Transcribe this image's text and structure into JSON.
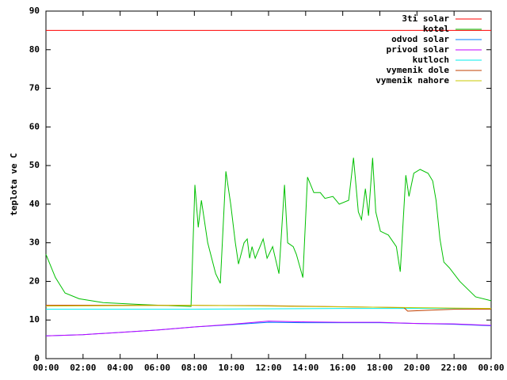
{
  "chart_data": {
    "type": "line",
    "y_label": "teplota ve C",
    "xlim": [
      0,
      24
    ],
    "xticks": [
      {
        "value": 0,
        "label": "00:00"
      },
      {
        "value": 2,
        "label": "02:00"
      },
      {
        "value": 4,
        "label": "04:00"
      },
      {
        "value": 6,
        "label": "06:00"
      },
      {
        "value": 8,
        "label": "08:00"
      },
      {
        "value": 10,
        "label": "10:00"
      },
      {
        "value": 12,
        "label": "12:00"
      },
      {
        "value": 14,
        "label": "14:00"
      },
      {
        "value": 16,
        "label": "16:00"
      },
      {
        "value": 18,
        "label": "18:00"
      },
      {
        "value": 20,
        "label": "20:00"
      },
      {
        "value": 22,
        "label": "22:00"
      },
      {
        "value": 24,
        "label": "00:00"
      }
    ],
    "ylim": [
      0,
      90
    ],
    "yticks": [
      0,
      10,
      20,
      30,
      40,
      50,
      60,
      70,
      80,
      90
    ],
    "legend": "top-right",
    "series": [
      {
        "name": "3ti solar",
        "color": "#ff0000",
        "x": [
          0,
          24
        ],
        "values": [
          85,
          85
        ]
      },
      {
        "name": "kotel",
        "color": "#00c000",
        "x": [
          0,
          0.51,
          1.03,
          1.79,
          3.08,
          5.21,
          7.82,
          8.03,
          8.21,
          8.38,
          8.72,
          9.15,
          9.4,
          9.7,
          9.96,
          10.21,
          10.38,
          10.68,
          10.85,
          10.98,
          11.11,
          11.28,
          11.71,
          11.92,
          12.22,
          12.56,
          12.86,
          13.03,
          13.33,
          13.5,
          13.85,
          14.1,
          14.44,
          14.79,
          15.04,
          15.47,
          15.81,
          16.32,
          16.58,
          16.84,
          17.01,
          17.22,
          17.39,
          17.61,
          17.78,
          18.03,
          18.46,
          18.89,
          19.1,
          19.4,
          19.57,
          19.83,
          20.17,
          20.6,
          20.85,
          21.03,
          21.24,
          21.45,
          21.75,
          22.31,
          23.16,
          24
        ],
        "values": [
          27,
          21,
          17,
          15.5,
          14.5,
          14,
          13.5,
          45,
          34,
          41,
          30,
          22,
          19.5,
          48.5,
          40,
          30,
          24.5,
          30,
          31,
          26,
          29,
          26,
          31,
          26,
          29,
          22,
          45,
          30,
          29,
          27,
          21,
          47,
          43,
          43,
          41.5,
          42,
          40,
          41,
          52,
          38,
          36,
          44,
          37,
          52,
          38,
          33,
          32,
          29,
          22.5,
          47.5,
          42,
          48,
          49,
          48,
          46,
          41,
          31,
          25,
          23.5,
          20,
          16,
          15
        ]
      },
      {
        "name": "odvod solar",
        "color": "#0080ff",
        "x": [
          0,
          2,
          4,
          6,
          8,
          10,
          12,
          14,
          16,
          18,
          20,
          22,
          24
        ],
        "values": [
          5.9,
          6.2,
          6.8,
          7.4,
          8.2,
          8.8,
          9.4,
          9.3,
          9.3,
          9.3,
          9.1,
          8.9,
          8.5
        ]
      },
      {
        "name": "privod solar",
        "color": "#c000ff",
        "x": [
          0,
          2,
          4,
          6,
          8,
          10,
          12,
          14,
          16,
          18,
          20,
          22,
          24
        ],
        "values": [
          5.9,
          6.2,
          6.8,
          7.4,
          8.2,
          8.9,
          9.7,
          9.5,
          9.4,
          9.4,
          9.1,
          9.0,
          8.6
        ]
      },
      {
        "name": "kutloch",
        "color": "#00eeee",
        "x": [
          0,
          8,
          16,
          24
        ],
        "values": [
          12.8,
          12.8,
          13,
          13
        ]
      },
      {
        "name": "vymenik dole",
        "color": "#c04000",
        "x": [
          0,
          8,
          12,
          18,
          19.3,
          19.5,
          20.5,
          22,
          24
        ],
        "values": [
          13.8,
          13.8,
          13.7,
          13.3,
          13.2,
          12.3,
          12.5,
          12.8,
          12.8
        ]
      },
      {
        "name": "vymenik nahore",
        "color": "#c8c800",
        "x": [
          0,
          8,
          12,
          16,
          20,
          24
        ],
        "values": [
          13.6,
          13.8,
          13.6,
          13.4,
          13.2,
          13
        ]
      }
    ]
  }
}
